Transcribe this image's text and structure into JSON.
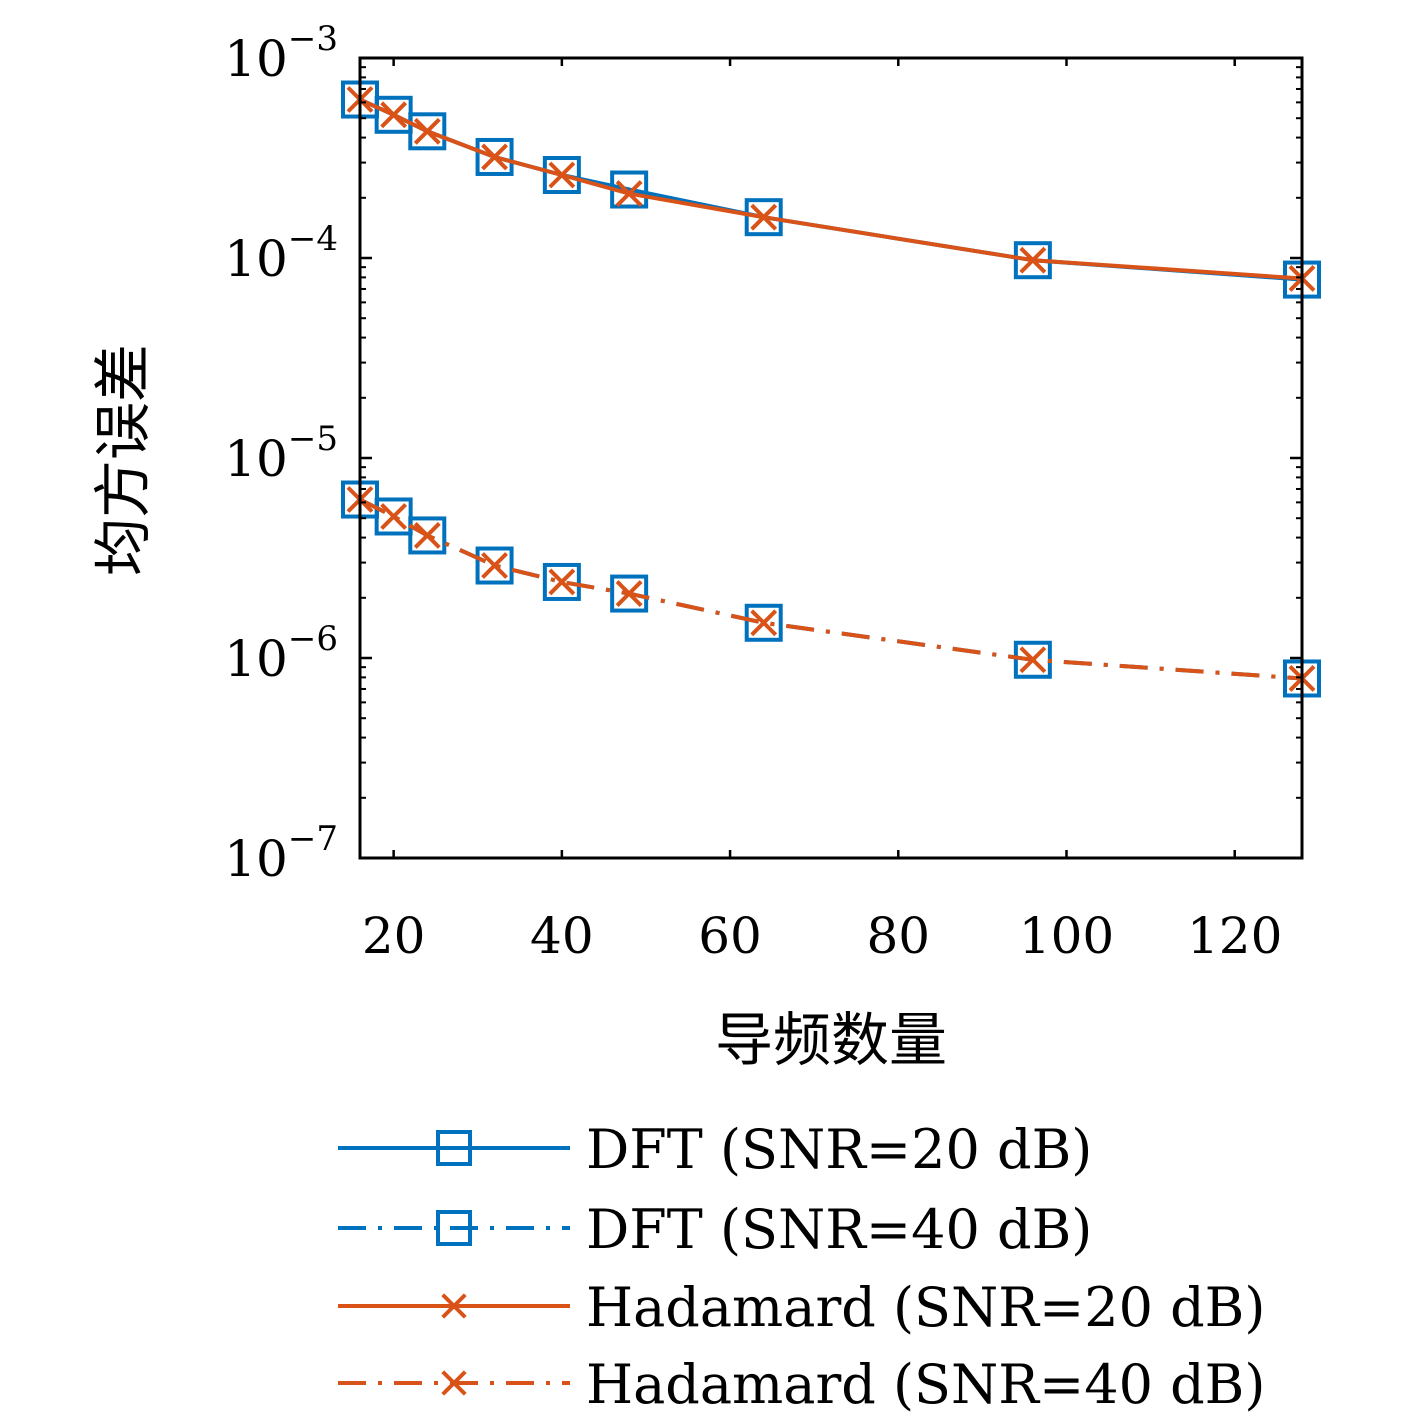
{
  "chart_data": {
    "type": "line",
    "xlabel": "导频数量",
    "ylabel": "均方误差",
    "xlim": [
      16,
      128
    ],
    "ylim": [
      1e-07,
      0.001
    ],
    "yscale": "log",
    "xticks": [
      20,
      40,
      60,
      80,
      100,
      120
    ],
    "x_tick_labels": [
      "20",
      "40",
      "60",
      "80",
      "100",
      "120"
    ],
    "yticks": [
      1e-07,
      1e-06,
      1e-05,
      0.0001,
      0.001
    ],
    "y_tick_labels": [
      {
        "base": "10",
        "exp": "−7"
      },
      {
        "base": "10",
        "exp": "−6"
      },
      {
        "base": "10",
        "exp": "−5"
      },
      {
        "base": "10",
        "exp": "−4"
      },
      {
        "base": "10",
        "exp": "−3"
      }
    ],
    "grid": false,
    "legend_position": "bottom",
    "x": [
      16,
      20,
      24,
      32,
      40,
      48,
      64,
      96,
      128
    ],
    "series": [
      {
        "name": "DFT (SNR=20 dB)",
        "color": "#0072BD",
        "line": "solid",
        "marker": "square",
        "values": [
          0.00062,
          0.00052,
          0.00043,
          0.00032,
          0.00026,
          0.00022,
          0.00016,
          9.75e-05,
          7.8e-05
        ]
      },
      {
        "name": "DFT (SNR=40 dB)",
        "color": "#0072BD",
        "line": "dashdot",
        "marker": "square",
        "values": [
          6.2e-06,
          5.1e-06,
          4.1e-06,
          2.9e-06,
          2.4e-06,
          2.1e-06,
          1.5e-06,
          9.8e-07,
          7.9e-07
        ]
      },
      {
        "name": "Hadamard (SNR=20 dB)",
        "color": "#D95319",
        "line": "solid",
        "marker": "x",
        "values": [
          0.00062,
          0.00052,
          0.00043,
          0.00032,
          0.00026,
          0.00021,
          0.00016,
          9.75e-05,
          7.9e-05
        ]
      },
      {
        "name": "Hadamard (SNR=40 dB)",
        "color": "#D95319",
        "line": "dashdot",
        "marker": "x",
        "values": [
          6.2e-06,
          5.1e-06,
          4.1e-06,
          2.9e-06,
          2.4e-06,
          2.1e-06,
          1.5e-06,
          9.8e-07,
          7.9e-07
        ]
      }
    ]
  }
}
